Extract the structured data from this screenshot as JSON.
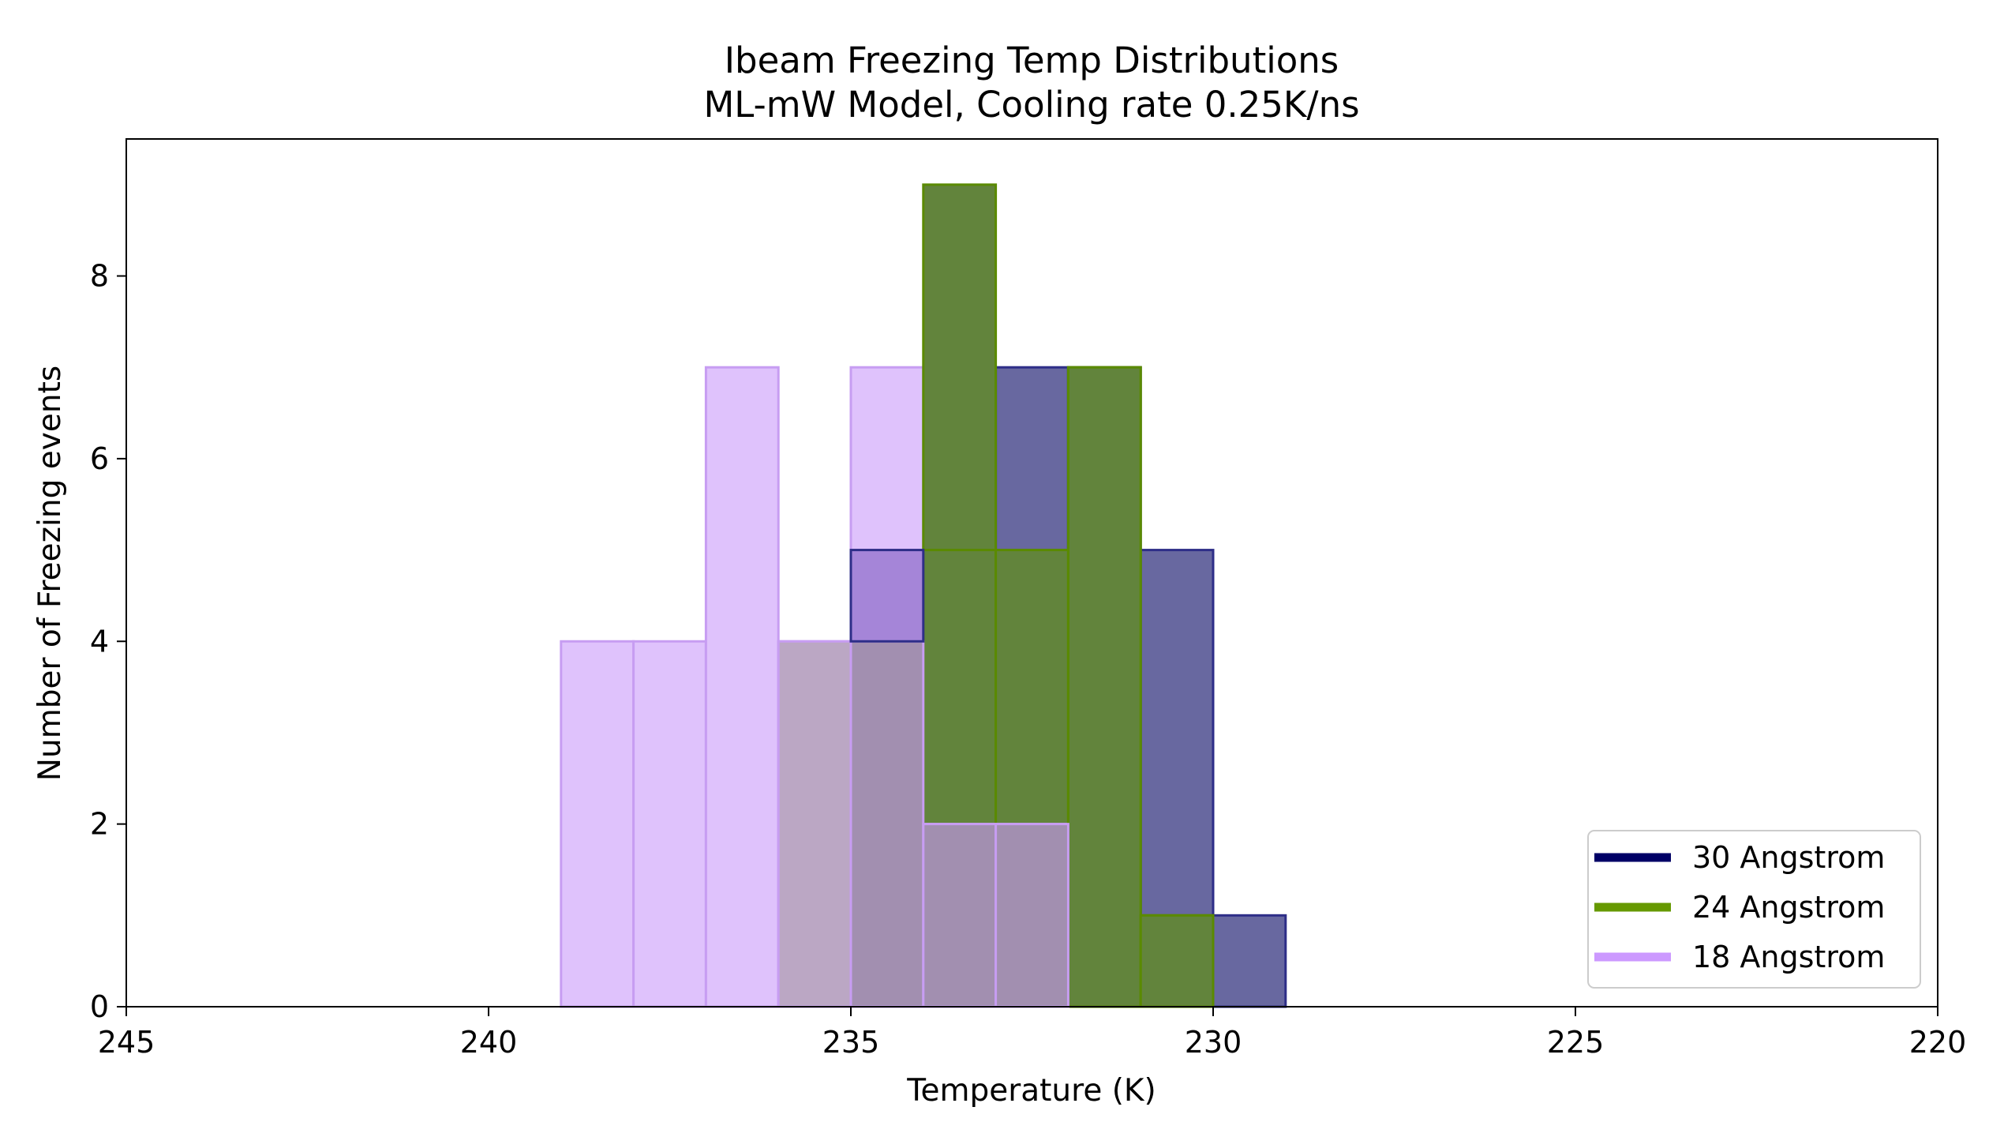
{
  "chart_data": {
    "type": "bar",
    "title": "Ibeam Freezing Temp Distributions",
    "subtitle": "ML-mW Model, Cooling rate 0.25K/ns",
    "xlabel": "Temperature (K)",
    "ylabel": "Number of Freezing events",
    "xlim": [
      245,
      220
    ],
    "ylim": [
      0,
      9.5
    ],
    "x_reversed": true,
    "x_ticks": [
      "245",
      "240",
      "235",
      "230",
      "225",
      "220"
    ],
    "x_tick_values": [
      245,
      240,
      235,
      230,
      225,
      220
    ],
    "y_ticks": [
      "0",
      "2",
      "4",
      "6",
      "8"
    ],
    "y_tick_values": [
      0,
      2,
      4,
      6,
      8
    ],
    "grid": false,
    "legend_position": "bottom-right",
    "bin_edges": [
      239,
      238,
      237,
      236,
      235,
      234,
      233,
      232,
      231,
      230,
      229
    ],
    "series": [
      {
        "name": "30 Angstrom",
        "color": "#000066",
        "fill": "#6868a0",
        "edge": "#2e2e88",
        "values": [
          0,
          0,
          0,
          0,
          5,
          5,
          7,
          7,
          5,
          1
        ]
      },
      {
        "name": "24 Angstrom",
        "color": "#669900",
        "fill": "#62843c",
        "edge": "#5a8a00",
        "values": [
          0,
          0,
          0,
          0,
          0,
          9,
          5,
          7,
          1,
          0
        ]
      },
      {
        "name": "18 Angstrom",
        "color": "#cc99ff",
        "fill": "#dfc2fc",
        "edge": "#c79df2",
        "values": [
          4,
          4,
          7,
          4,
          7,
          2,
          2,
          0,
          0,
          0
        ]
      }
    ]
  }
}
